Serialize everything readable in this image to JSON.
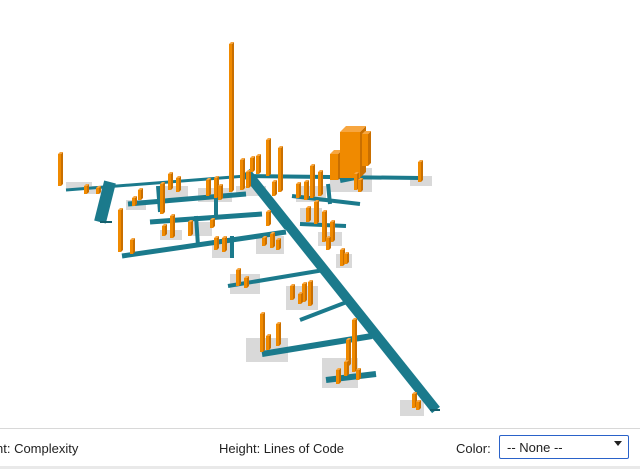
{
  "toolbar": {
    "footprint_label": "nt: Complexity",
    "height_label": "Height: Lines of Code",
    "color_label": "Color:",
    "color_select": {
      "selected": "-- None --"
    }
  },
  "colors": {
    "street": "#1b7a8c",
    "street_dark": "#14606e",
    "district": "#d9d9d9",
    "building_front": "#f08a00",
    "building_side": "#c96f00",
    "building_top": "#f7a640"
  }
}
